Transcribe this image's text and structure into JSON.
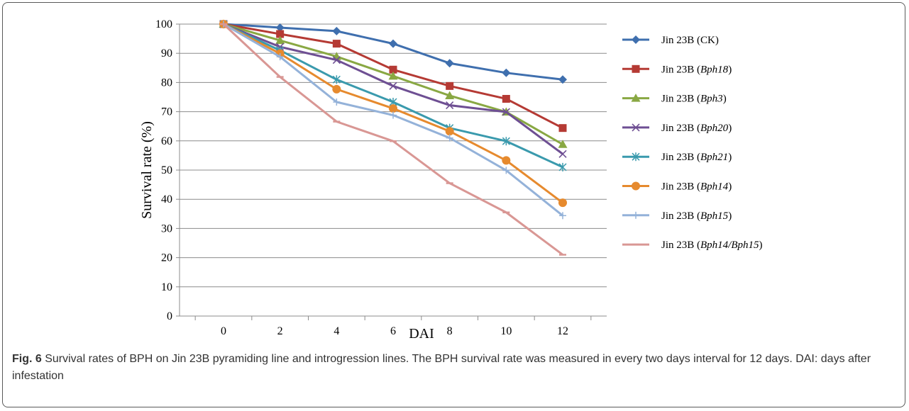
{
  "chart_data": {
    "type": "line",
    "title": "",
    "xlabel": "DAI",
    "ylabel": "Survival rate (%)",
    "x": [
      0,
      2,
      4,
      6,
      8,
      10,
      12
    ],
    "ylim": [
      0,
      100
    ],
    "yticks": [
      0,
      10,
      20,
      30,
      40,
      50,
      60,
      70,
      80,
      90,
      100
    ],
    "grid": "horizontal",
    "legend_placement": "right",
    "series": [
      {
        "name_prefix": "Jin 23B (",
        "name_italic": "CK",
        "name_suffix": ")",
        "italic": false,
        "color": "#3f6fae",
        "marker": "diamond",
        "values": [
          100,
          98.8,
          97.6,
          93.3,
          86.6,
          83.3,
          81.0
        ]
      },
      {
        "name_prefix": "Jin 23B (",
        "name_italic": "Bph18",
        "name_suffix": ")",
        "italic": true,
        "color": "#b53a34",
        "marker": "square",
        "values": [
          100,
          96.6,
          93.3,
          84.4,
          78.8,
          74.4,
          64.4
        ]
      },
      {
        "name_prefix": "Jin 23B (",
        "name_italic": "Bph3",
        "name_suffix": ")",
        "italic": true,
        "color": "#89a843",
        "marker": "triangle",
        "values": [
          100,
          94.4,
          88.9,
          82.2,
          75.5,
          69.9,
          58.8
        ]
      },
      {
        "name_prefix": "Jin 23B (",
        "name_italic": "Bph20",
        "name_suffix": ")",
        "italic": true,
        "color": "#6e4f93",
        "marker": "x",
        "values": [
          100,
          92.2,
          87.7,
          78.8,
          72.2,
          69.9,
          55.5
        ]
      },
      {
        "name_prefix": "Jin 23B (",
        "name_italic": "Bph21",
        "name_suffix": ")",
        "italic": true,
        "color": "#3a9aad",
        "marker": "asterisk",
        "values": [
          100,
          91.0,
          81.0,
          73.3,
          64.4,
          59.9,
          51.0
        ]
      },
      {
        "name_prefix": "Jin 23B (",
        "name_italic": "Bph14",
        "name_suffix": ")",
        "italic": true,
        "color": "#e68a2e",
        "marker": "circle",
        "values": [
          100,
          89.9,
          77.7,
          71.1,
          63.3,
          53.3,
          38.8
        ]
      },
      {
        "name_prefix": "Jin 23B (",
        "name_italic": "Bph15",
        "name_suffix": ")",
        "italic": true,
        "color": "#94b2d9",
        "marker": "plus",
        "values": [
          100,
          88.8,
          73.3,
          68.8,
          61.0,
          49.9,
          34.4
        ]
      },
      {
        "name_prefix": "Jin 23B (",
        "name_italic": "Bph14/Bph15",
        "name_suffix": ")",
        "italic": true,
        "color": "#d99794",
        "marker": "dash",
        "values": [
          100,
          81.9,
          66.6,
          59.9,
          45.5,
          35.5,
          21.0
        ]
      }
    ]
  },
  "caption": {
    "label": "Fig. 6",
    "text": " Survival rates of BPH on Jin 23B pyramiding line and introgression lines. The BPH survival rate was measured in every two days interval for 12 days. DAI: days after infestation"
  }
}
